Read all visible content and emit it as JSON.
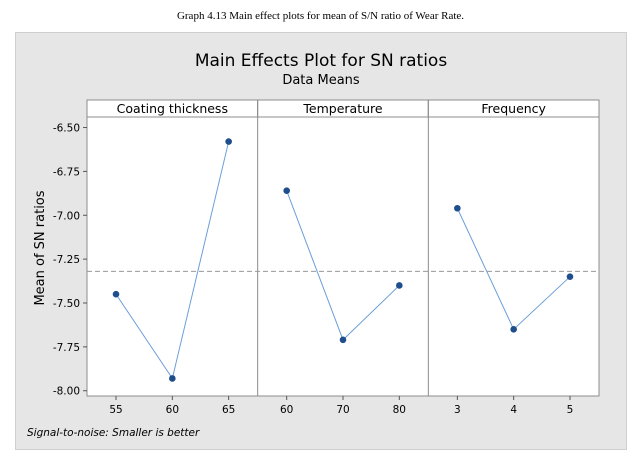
{
  "caption": "Graph 4.13 Main effect plots for mean of S/N ratio of Wear Rate.",
  "chart_data": {
    "type": "line",
    "title": "Main Effects Plot for SN ratios",
    "subtitle": "Data Means",
    "ylabel": "Mean of SN ratios",
    "ylim": [
      -8.03,
      -6.44
    ],
    "yticks": [
      -6.5,
      -6.75,
      -7.0,
      -7.25,
      -7.5,
      -7.75,
      -8.0
    ],
    "ytick_labels": [
      "-6.50",
      "-6.75",
      "-7.00",
      "-7.25",
      "-7.50",
      "-7.75",
      "-8.00"
    ],
    "reference_line": -7.32,
    "footnote": "Signal-to-noise: Smaller is better",
    "line_color": "#6b9ed8",
    "marker_color": "#1f4e8c",
    "reference_color": "#999999",
    "panels": [
      {
        "name": "Coating thickness",
        "categories": [
          "55",
          "60",
          "65"
        ],
        "values": [
          -7.45,
          -7.93,
          -6.58
        ]
      },
      {
        "name": "Temperature",
        "categories": [
          "60",
          "70",
          "80"
        ],
        "values": [
          -6.86,
          -7.71,
          -7.4
        ]
      },
      {
        "name": "Frequency",
        "categories": [
          "3",
          "4",
          "5"
        ],
        "values": [
          -6.96,
          -7.65,
          -7.35
        ]
      }
    ]
  }
}
